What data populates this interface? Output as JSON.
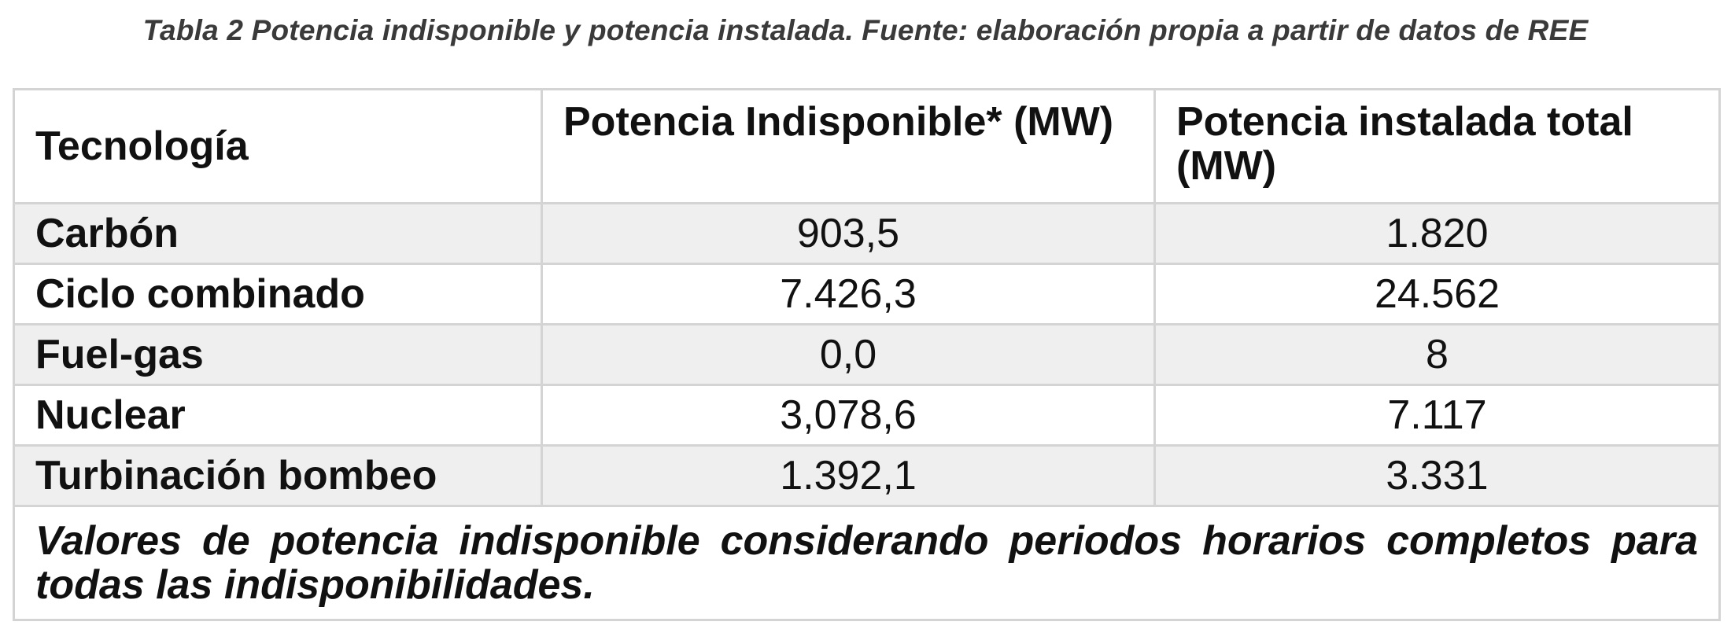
{
  "caption": "Tabla 2 Potencia indisponible y potencia instalada. Fuente: elaboración propia a partir de datos de REE",
  "table": {
    "headers": [
      "Tecnología",
      "Potencia Indisponible* (MW)",
      "Potencia instalada total (MW)"
    ],
    "rows": [
      {
        "tecnologia": "Carbón",
        "potencia_indisponible": "903,5",
        "potencia_instalada": "1.820"
      },
      {
        "tecnologia": "Ciclo combinado",
        "potencia_indisponible": "7.426,3",
        "potencia_instalada": "24.562"
      },
      {
        "tecnologia": "Fuel-gas",
        "potencia_indisponible": "0,0",
        "potencia_instalada": "8"
      },
      {
        "tecnologia": "Nuclear",
        "potencia_indisponible": "3,078,6",
        "potencia_instalada": "7.117"
      },
      {
        "tecnologia": "Turbinación bombeo",
        "potencia_indisponible": "1.392,1",
        "potencia_instalada": "3.331"
      }
    ],
    "footnote": "Valores de potencia indisponible considerando periodos horarios completos para todas las indisponibilidades."
  },
  "colors": {
    "border": "#d4d4d4",
    "row_shade": "#efefef",
    "caption_text": "#3a3a3a"
  }
}
